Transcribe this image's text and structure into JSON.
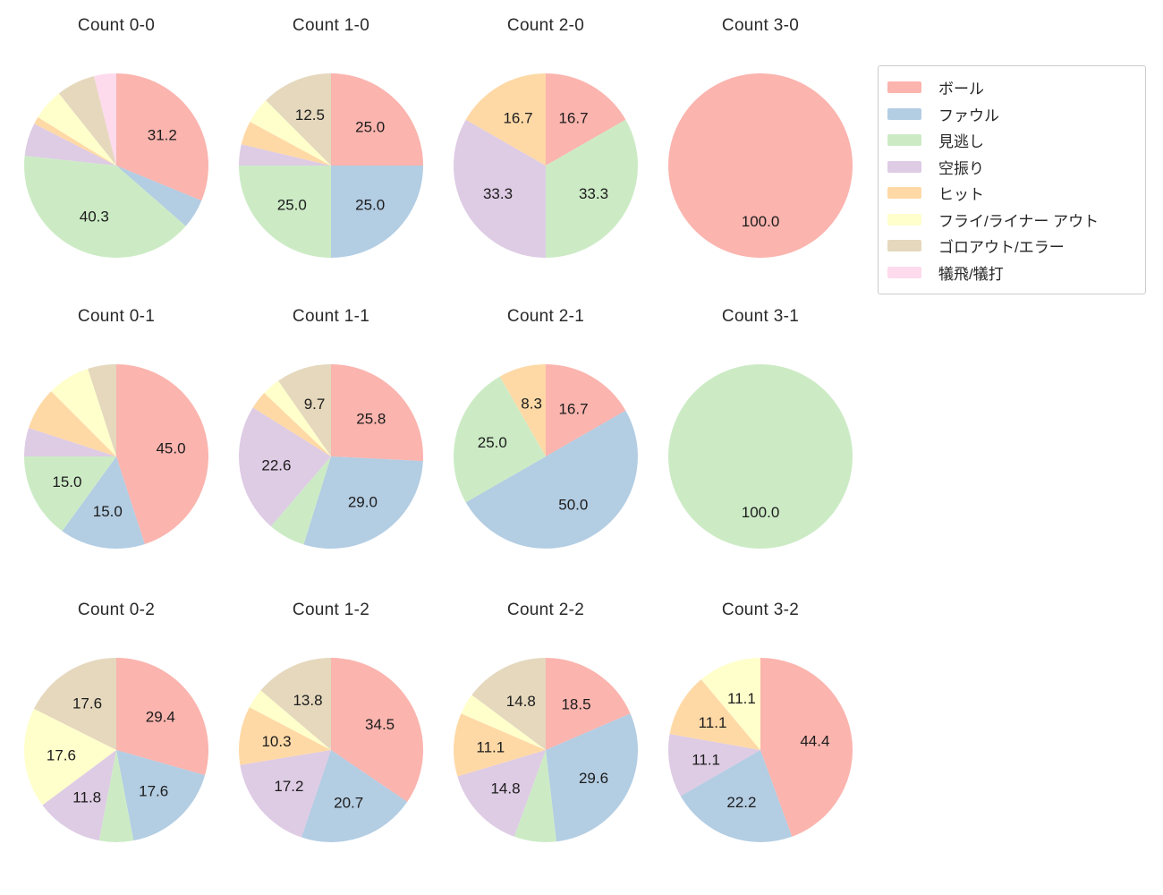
{
  "figure": {
    "background": "#ffffff"
  },
  "chart_data": {
    "type": "pie",
    "layout": {
      "grid_rows": 3,
      "grid_cols": 4,
      "legend_position": "upper right",
      "label_distance": 0.6,
      "start_angle": "top",
      "direction": "clockwise"
    },
    "categories": [
      {
        "key": "ball",
        "label": "ボール",
        "color": "#fbb4ae"
      },
      {
        "key": "foul",
        "label": "ファウル",
        "color": "#b3cde3"
      },
      {
        "key": "called-strike",
        "label": "見逃し",
        "color": "#ccebc5"
      },
      {
        "key": "swinging-strike",
        "label": "空振り",
        "color": "#decbe4"
      },
      {
        "key": "hit",
        "label": "ヒット",
        "color": "#fed9a6"
      },
      {
        "key": "fly-liner-out",
        "label": "フライ/ライナー アウト",
        "color": "#ffffcc"
      },
      {
        "key": "groundout-error",
        "label": "ゴロアウト/エラー",
        "color": "#e5d8bd"
      },
      {
        "key": "sacrifice",
        "label": "犠飛/犠打",
        "color": "#fddaec"
      }
    ],
    "charts": [
      {
        "title": "Count 0-0",
        "slices": [
          {
            "category": "ball",
            "value": 31.2,
            "label": "31.2"
          },
          {
            "category": "foul",
            "value": 5.2,
            "label": null
          },
          {
            "category": "called-strike",
            "value": 40.3,
            "label": "40.3"
          },
          {
            "category": "swinging-strike",
            "value": 5.8,
            "label": null
          },
          {
            "category": "hit",
            "value": 1.3,
            "label": null
          },
          {
            "category": "fly-liner-out",
            "value": 5.5,
            "label": null
          },
          {
            "category": "groundout-error",
            "value": 6.8,
            "label": null
          },
          {
            "category": "sacrifice",
            "value": 3.9,
            "label": null
          }
        ]
      },
      {
        "title": "Count 1-0",
        "slices": [
          {
            "category": "ball",
            "value": 25.0,
            "label": "25.0"
          },
          {
            "category": "foul",
            "value": 25.0,
            "label": "25.0"
          },
          {
            "category": "called-strike",
            "value": 25.0,
            "label": "25.0"
          },
          {
            "category": "swinging-strike",
            "value": 3.7,
            "label": null
          },
          {
            "category": "hit",
            "value": 4.2,
            "label": null
          },
          {
            "category": "fly-liner-out",
            "value": 4.6,
            "label": null
          },
          {
            "category": "groundout-error",
            "value": 12.5,
            "label": "12.5"
          }
        ]
      },
      {
        "title": "Count 2-0",
        "slices": [
          {
            "category": "ball",
            "value": 16.7,
            "label": "16.7"
          },
          {
            "category": "called-strike",
            "value": 33.3,
            "label": "33.3"
          },
          {
            "category": "swinging-strike",
            "value": 33.3,
            "label": "33.3"
          },
          {
            "category": "hit",
            "value": 16.7,
            "label": "16.7"
          }
        ]
      },
      {
        "title": "Count 3-0",
        "slices": [
          {
            "category": "ball",
            "value": 100.0,
            "label": "100.0"
          }
        ]
      },
      {
        "title": "Count 0-1",
        "slices": [
          {
            "category": "ball",
            "value": 45.0,
            "label": "45.0"
          },
          {
            "category": "foul",
            "value": 15.0,
            "label": "15.0"
          },
          {
            "category": "called-strike",
            "value": 15.0,
            "label": "15.0"
          },
          {
            "category": "swinging-strike",
            "value": 5.0,
            "label": null
          },
          {
            "category": "hit",
            "value": 7.5,
            "label": null
          },
          {
            "category": "fly-liner-out",
            "value": 7.5,
            "label": null
          },
          {
            "category": "groundout-error",
            "value": 5.0,
            "label": null
          }
        ]
      },
      {
        "title": "Count 1-1",
        "slices": [
          {
            "category": "ball",
            "value": 25.8,
            "label": "25.8"
          },
          {
            "category": "foul",
            "value": 29.0,
            "label": "29.0"
          },
          {
            "category": "called-strike",
            "value": 6.5,
            "label": null
          },
          {
            "category": "swinging-strike",
            "value": 22.6,
            "label": "22.6"
          },
          {
            "category": "hit",
            "value": 3.2,
            "label": null
          },
          {
            "category": "fly-liner-out",
            "value": 3.2,
            "label": null
          },
          {
            "category": "groundout-error",
            "value": 9.7,
            "label": "9.7"
          }
        ]
      },
      {
        "title": "Count 2-1",
        "slices": [
          {
            "category": "ball",
            "value": 16.7,
            "label": "16.7"
          },
          {
            "category": "foul",
            "value": 50.0,
            "label": "50.0"
          },
          {
            "category": "called-strike",
            "value": 25.0,
            "label": "25.0"
          },
          {
            "category": "hit",
            "value": 8.3,
            "label": "8.3"
          }
        ]
      },
      {
        "title": "Count 3-1",
        "slices": [
          {
            "category": "called-strike",
            "value": 100.0,
            "label": "100.0"
          }
        ]
      },
      {
        "title": "Count 0-2",
        "slices": [
          {
            "category": "ball",
            "value": 29.4,
            "label": "29.4"
          },
          {
            "category": "foul",
            "value": 17.6,
            "label": "17.6"
          },
          {
            "category": "called-strike",
            "value": 6.0,
            "label": null
          },
          {
            "category": "swinging-strike",
            "value": 11.8,
            "label": "11.8"
          },
          {
            "category": "fly-liner-out",
            "value": 17.6,
            "label": "17.6"
          },
          {
            "category": "groundout-error",
            "value": 17.6,
            "label": "17.6"
          }
        ]
      },
      {
        "title": "Count 1-2",
        "slices": [
          {
            "category": "ball",
            "value": 34.5,
            "label": "34.5"
          },
          {
            "category": "foul",
            "value": 20.7,
            "label": "20.7"
          },
          {
            "category": "swinging-strike",
            "value": 17.2,
            "label": "17.2"
          },
          {
            "category": "hit",
            "value": 10.3,
            "label": "10.3"
          },
          {
            "category": "fly-liner-out",
            "value": 3.5,
            "label": null
          },
          {
            "category": "groundout-error",
            "value": 13.8,
            "label": "13.8"
          }
        ]
      },
      {
        "title": "Count 2-2",
        "slices": [
          {
            "category": "ball",
            "value": 18.5,
            "label": "18.5"
          },
          {
            "category": "foul",
            "value": 29.6,
            "label": "29.6"
          },
          {
            "category": "called-strike",
            "value": 7.4,
            "label": null
          },
          {
            "category": "swinging-strike",
            "value": 14.8,
            "label": "14.8"
          },
          {
            "category": "hit",
            "value": 11.1,
            "label": "11.1"
          },
          {
            "category": "fly-liner-out",
            "value": 3.7,
            "label": null
          },
          {
            "category": "groundout-error",
            "value": 14.8,
            "label": "14.8"
          }
        ]
      },
      {
        "title": "Count 3-2",
        "slices": [
          {
            "category": "ball",
            "value": 44.4,
            "label": "44.4"
          },
          {
            "category": "foul",
            "value": 22.2,
            "label": "22.2"
          },
          {
            "category": "swinging-strike",
            "value": 11.1,
            "label": "11.1"
          },
          {
            "category": "hit",
            "value": 11.1,
            "label": "11.1"
          },
          {
            "category": "fly-liner-out",
            "value": 11.1,
            "label": "11.1"
          }
        ]
      }
    ]
  }
}
